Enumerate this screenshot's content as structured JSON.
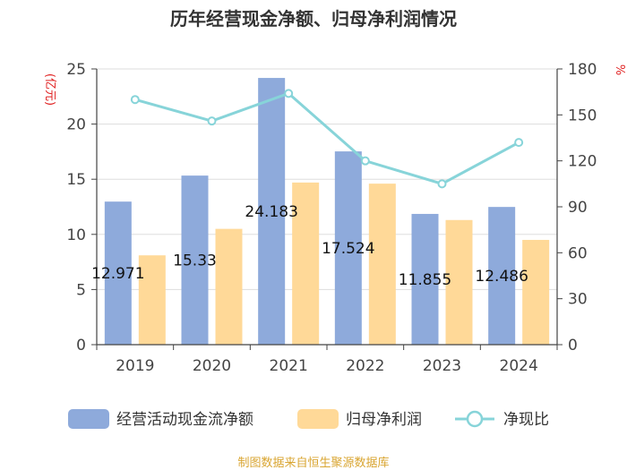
{
  "chart_data": {
    "type": "bar",
    "title": "历年经营现金净额、归母净利润情况",
    "categories": [
      "2019",
      "2020",
      "2021",
      "2022",
      "2023",
      "2024"
    ],
    "series": [
      {
        "name": "经营活动现金流净额",
        "axis": "left",
        "color": "#8EAADB",
        "values": [
          12.971,
          15.33,
          24.183,
          17.524,
          11.855,
          12.486
        ],
        "labels": [
          "12.971",
          "15.33",
          "24.183",
          "17.524",
          "11.855",
          "12.486"
        ]
      },
      {
        "name": "归母净利润",
        "axis": "left",
        "color": "#FFD998",
        "values": [
          8.1,
          10.5,
          14.7,
          14.6,
          11.3,
          9.5
        ]
      },
      {
        "name": "净现比",
        "axis": "right",
        "type": "line",
        "color": "#87D4D9",
        "values": [
          160,
          146,
          164,
          120,
          105,
          132
        ]
      }
    ],
    "y_left": {
      "label": "(亿元)",
      "range": [
        0,
        25
      ],
      "ticks": [
        0,
        5,
        10,
        15,
        20,
        25
      ]
    },
    "y_right": {
      "label": "%",
      "range": [
        0,
        180
      ],
      "ticks": [
        0,
        30,
        60,
        90,
        120,
        150,
        180
      ]
    },
    "grid": true,
    "legend_position": "bottom",
    "source": "制图数据来自恒生聚源数据库",
    "colors": {
      "axis_label": "#E02020",
      "source": "#D9A531",
      "axis": "#444444",
      "grid": "#DDDDDD"
    }
  }
}
